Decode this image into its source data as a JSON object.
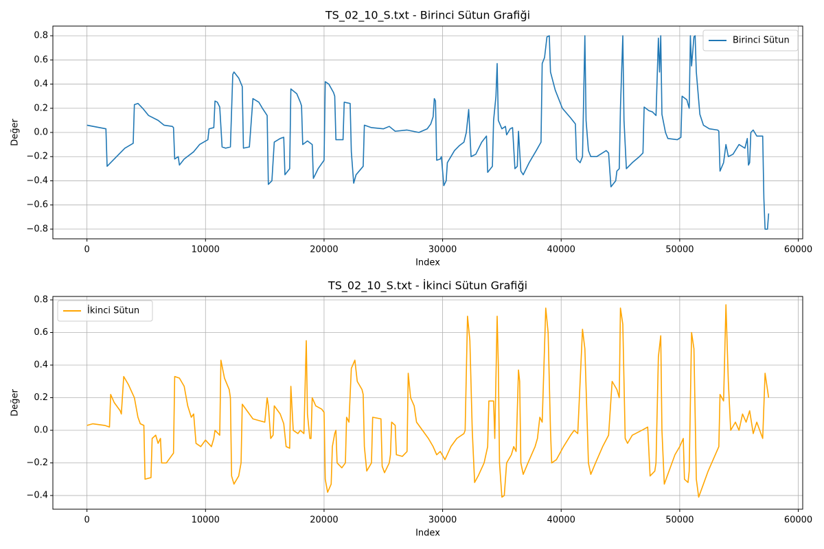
{
  "chart_data": [
    {
      "type": "line",
      "title": "TS_02_10_S.txt - Birinci Sütun Grafiği",
      "xlabel": "Index",
      "ylabel": "Değer",
      "x": [
        0,
        1600,
        1700,
        2500,
        3200,
        3900,
        4000,
        4300,
        4700,
        5200,
        6000,
        6500,
        7200,
        7300,
        7400,
        7700,
        7800,
        8200,
        9000,
        9500,
        10200,
        10300,
        10700,
        10800,
        11000,
        11200,
        11400,
        11700,
        12100,
        12300,
        12400,
        12800,
        13100,
        13200,
        13700,
        14000,
        14500,
        14800,
        15200,
        15300,
        15600,
        15800,
        16300,
        16600,
        16700,
        17100,
        17200,
        17700,
        18000,
        18100,
        18200,
        18600,
        19000,
        19100,
        19500,
        20000,
        20100,
        20400,
        20800,
        20900,
        21000,
        21600,
        21700,
        22200,
        22300,
        22500,
        22700,
        23300,
        23400,
        24000,
        25000,
        25500,
        26000,
        27000,
        28000,
        28700,
        29000,
        29200,
        29300,
        29400,
        29500,
        29800,
        29900,
        30100,
        30300,
        30400,
        31000,
        31400,
        31800,
        32000,
        32200,
        32400,
        32800,
        33300,
        33700,
        33800,
        34200,
        34300,
        34500,
        34600,
        34700,
        35000,
        35300,
        35400,
        35700,
        35900,
        36100,
        36300,
        36400,
        36600,
        36800,
        37300,
        37900,
        38300,
        38400,
        38600,
        38800,
        39000,
        39100,
        39500,
        40100,
        40800,
        41200,
        41300,
        41600,
        41800,
        41900,
        42000,
        42100,
        42300,
        42500,
        43000,
        43800,
        44000,
        44200,
        44600,
        44700,
        44900,
        45000,
        45200,
        45300,
        45500,
        46000,
        46600,
        46900,
        47000,
        47400,
        47700,
        48000,
        48200,
        48300,
        48400,
        48500,
        48800,
        49000,
        49800,
        50100,
        50200,
        50600,
        50800,
        50900,
        51000,
        51200,
        51300,
        51400,
        51700,
        52000,
        52500,
        53200,
        53300,
        53400,
        53700,
        53900,
        54100,
        54500,
        55000,
        55500,
        55700,
        55800,
        55900,
        56000,
        56200,
        56500,
        57000,
        57100,
        57200,
        57400,
        57500
      ],
      "series": [
        {
          "name": "Birinci Sütun",
          "color": "#1f77b4",
          "values": [
            0.06,
            0.03,
            -0.28,
            -0.2,
            -0.13,
            -0.09,
            0.23,
            0.24,
            0.2,
            0.14,
            0.1,
            0.06,
            0.05,
            0.04,
            -0.22,
            -0.2,
            -0.27,
            -0.22,
            -0.16,
            -0.1,
            -0.06,
            0.03,
            0.04,
            0.26,
            0.25,
            0.21,
            -0.12,
            -0.13,
            -0.12,
            0.48,
            0.5,
            0.45,
            0.38,
            -0.13,
            -0.12,
            0.28,
            0.25,
            0.2,
            0.14,
            -0.43,
            -0.4,
            -0.08,
            -0.05,
            -0.04,
            -0.35,
            -0.3,
            0.36,
            0.32,
            0.25,
            0.22,
            -0.1,
            -0.07,
            -0.1,
            -0.38,
            -0.3,
            -0.23,
            0.42,
            0.4,
            0.33,
            0.3,
            -0.06,
            -0.06,
            0.25,
            0.24,
            -0.16,
            -0.42,
            -0.35,
            -0.28,
            0.06,
            0.04,
            0.03,
            0.05,
            0.01,
            0.02,
            0.0,
            0.03,
            0.07,
            0.13,
            0.28,
            0.26,
            -0.23,
            -0.22,
            -0.2,
            -0.44,
            -0.4,
            -0.25,
            -0.15,
            -0.11,
            -0.08,
            0.0,
            0.19,
            -0.2,
            -0.18,
            -0.08,
            -0.03,
            -0.33,
            -0.28,
            0.1,
            0.3,
            0.57,
            0.1,
            0.03,
            0.05,
            -0.02,
            0.03,
            0.04,
            -0.3,
            -0.28,
            0.01,
            -0.32,
            -0.35,
            -0.25,
            -0.15,
            -0.08,
            0.57,
            0.62,
            0.79,
            0.8,
            0.5,
            0.35,
            0.2,
            0.12,
            0.07,
            -0.22,
            -0.25,
            -0.2,
            0.3,
            0.8,
            0.1,
            -0.15,
            -0.2,
            -0.2,
            -0.15,
            -0.17,
            -0.45,
            -0.4,
            -0.32,
            -0.3,
            0.2,
            0.8,
            0.1,
            -0.3,
            -0.25,
            -0.2,
            -0.17,
            0.21,
            0.18,
            0.17,
            0.14,
            0.78,
            0.5,
            0.8,
            0.15,
            0.0,
            -0.05,
            -0.06,
            -0.04,
            0.3,
            0.27,
            0.2,
            0.8,
            0.55,
            0.79,
            0.8,
            0.5,
            0.15,
            0.06,
            0.03,
            0.02,
            0.01,
            -0.32,
            -0.25,
            -0.1,
            -0.2,
            -0.18,
            -0.1,
            -0.13,
            -0.05,
            -0.27,
            -0.25,
            0.0,
            0.02,
            -0.03,
            -0.03,
            -0.55,
            -0.8,
            -0.8,
            -0.67
          ]
        }
      ],
      "xlim": [
        -2875,
        60375
      ],
      "ylim": [
        -0.88,
        0.88
      ],
      "xticks": [
        0,
        10000,
        20000,
        30000,
        40000,
        50000,
        60000
      ],
      "yticks": [
        {
          "value": -0.8,
          "label": "−0.8"
        },
        {
          "value": -0.6,
          "label": "−0.6"
        },
        {
          "value": -0.4,
          "label": "−0.4"
        },
        {
          "value": -0.2,
          "label": "−0.2"
        },
        {
          "value": 0,
          "label": "0.0"
        },
        0.2,
        0.4,
        0.6,
        0.8
      ],
      "grid": true,
      "legend": "upper right"
    },
    {
      "type": "line",
      "title": "TS_02_10_S.txt - İkinci Sütun Grafiği",
      "xlabel": "Index",
      "ylabel": "Değer",
      "x": [
        0,
        500,
        1500,
        1900,
        2000,
        2300,
        2800,
        2900,
        3100,
        3500,
        4000,
        4300,
        4500,
        4800,
        4900,
        5400,
        5500,
        5800,
        6000,
        6200,
        6300,
        6700,
        7000,
        7300,
        7400,
        7800,
        8200,
        8500,
        8800,
        9000,
        9200,
        9600,
        10000,
        10500,
        10700,
        10800,
        11200,
        11300,
        11600,
        12000,
        12100,
        12200,
        12400,
        12800,
        13000,
        13100,
        13500,
        14000,
        15000,
        15200,
        15300,
        15500,
        15700,
        15800,
        16300,
        16600,
        16800,
        17100,
        17200,
        17400,
        17800,
        18000,
        18300,
        18500,
        18600,
        18800,
        18900,
        19000,
        19300,
        19800,
        20000,
        20100,
        20300,
        20600,
        20700,
        20900,
        21000,
        21100,
        21500,
        21800,
        21900,
        22100,
        22300,
        22600,
        22800,
        23200,
        23300,
        23400,
        23600,
        24000,
        24100,
        24800,
        24900,
        25100,
        25500,
        25600,
        25700,
        26000,
        26100,
        26600,
        27000,
        27100,
        27300,
        27600,
        27800,
        28300,
        28800,
        29200,
        29500,
        29800,
        30200,
        30700,
        31200,
        31800,
        31900,
        32100,
        32300,
        32500,
        32700,
        33000,
        33500,
        33800,
        33900,
        34300,
        34400,
        34600,
        34700,
        34800,
        35000,
        35200,
        35400,
        35800,
        36000,
        36200,
        36400,
        36500,
        36600,
        36800,
        37200,
        37800,
        38000,
        38200,
        38400,
        38700,
        38900,
        39100,
        39200,
        39600,
        40200,
        40800,
        41100,
        41400,
        41800,
        42000,
        42300,
        42500,
        42900,
        43500,
        44000,
        44300,
        44700,
        44900,
        45000,
        45200,
        45400,
        45600,
        46000,
        46800,
        47300,
        47500,
        47900,
        48000,
        48200,
        48400,
        48500,
        48700,
        49100,
        49600,
        50000,
        50300,
        50400,
        50700,
        50800,
        51000,
        51200,
        51400,
        51600,
        51900,
        52400,
        53000,
        53300,
        53400,
        53700,
        53900,
        54100,
        54300,
        54700,
        55000,
        55300,
        55600,
        55900,
        56200,
        56500,
        57000,
        57200,
        57400,
        57500
      ],
      "series": [
        {
          "name": "İkinci Sütun",
          "color": "#ffa500",
          "values": [
            0.03,
            0.04,
            0.03,
            0.02,
            0.22,
            0.17,
            0.12,
            0.1,
            0.33,
            0.28,
            0.2,
            0.08,
            0.04,
            0.03,
            -0.3,
            -0.29,
            -0.05,
            -0.03,
            -0.08,
            -0.05,
            -0.2,
            -0.2,
            -0.17,
            -0.14,
            0.33,
            0.32,
            0.27,
            0.15,
            0.08,
            0.1,
            -0.08,
            -0.1,
            -0.06,
            -0.1,
            -0.05,
            0.0,
            -0.03,
            0.43,
            0.32,
            0.25,
            0.2,
            -0.28,
            -0.33,
            -0.28,
            -0.2,
            0.16,
            0.12,
            0.07,
            0.05,
            0.2,
            0.15,
            -0.05,
            -0.03,
            0.15,
            0.1,
            0.04,
            -0.1,
            -0.11,
            0.27,
            0.0,
            -0.02,
            0.0,
            -0.02,
            0.55,
            0.1,
            -0.05,
            -0.05,
            0.2,
            0.15,
            0.13,
            0.11,
            -0.3,
            -0.38,
            -0.33,
            -0.1,
            -0.02,
            0.0,
            -0.2,
            -0.23,
            -0.2,
            0.08,
            0.05,
            0.38,
            0.43,
            0.3,
            0.25,
            0.22,
            -0.1,
            -0.25,
            -0.2,
            0.08,
            0.07,
            -0.22,
            -0.26,
            -0.2,
            -0.15,
            0.05,
            0.03,
            -0.15,
            -0.16,
            -0.13,
            0.35,
            0.2,
            0.15,
            0.05,
            0.0,
            -0.05,
            -0.1,
            -0.15,
            -0.13,
            -0.18,
            -0.1,
            -0.05,
            -0.02,
            0.0,
            0.7,
            0.55,
            0.0,
            -0.32,
            -0.28,
            -0.2,
            -0.1,
            0.18,
            0.18,
            -0.05,
            0.7,
            0.4,
            -0.2,
            -0.41,
            -0.4,
            -0.2,
            -0.15,
            -0.1,
            -0.13,
            0.37,
            0.3,
            -0.2,
            -0.27,
            -0.2,
            -0.1,
            -0.05,
            0.08,
            0.05,
            0.75,
            0.6,
            0.0,
            -0.2,
            -0.18,
            -0.1,
            -0.03,
            0.0,
            -0.02,
            0.62,
            0.5,
            -0.2,
            -0.27,
            -0.2,
            -0.1,
            -0.03,
            0.3,
            0.25,
            0.2,
            0.75,
            0.65,
            -0.05,
            -0.08,
            -0.03,
            0.0,
            0.02,
            -0.28,
            -0.25,
            -0.2,
            0.45,
            0.58,
            0.0,
            -0.33,
            -0.25,
            -0.15,
            -0.1,
            -0.05,
            -0.3,
            -0.32,
            -0.25,
            0.6,
            0.5,
            -0.3,
            -0.41,
            -0.35,
            -0.25,
            -0.15,
            -0.1,
            0.22,
            0.18,
            0.77,
            0.3,
            0.0,
            0.05,
            0.0,
            0.1,
            0.05,
            0.12,
            -0.02,
            0.05,
            -0.05,
            0.35,
            0.25,
            0.2
          ]
        }
      ],
      "xlim": [
        -2875,
        60375
      ],
      "ylim": [
        -0.484,
        0.821
      ],
      "xticks": [
        0,
        10000,
        20000,
        30000,
        40000,
        50000,
        60000
      ],
      "yticks": [
        {
          "value": -0.4,
          "label": "−0.4"
        },
        {
          "value": -0.2,
          "label": "−0.2"
        },
        {
          "value": 0,
          "label": "0.0"
        },
        0.2,
        0.4,
        0.6,
        0.8
      ],
      "grid": true,
      "legend": "upper left"
    }
  ]
}
